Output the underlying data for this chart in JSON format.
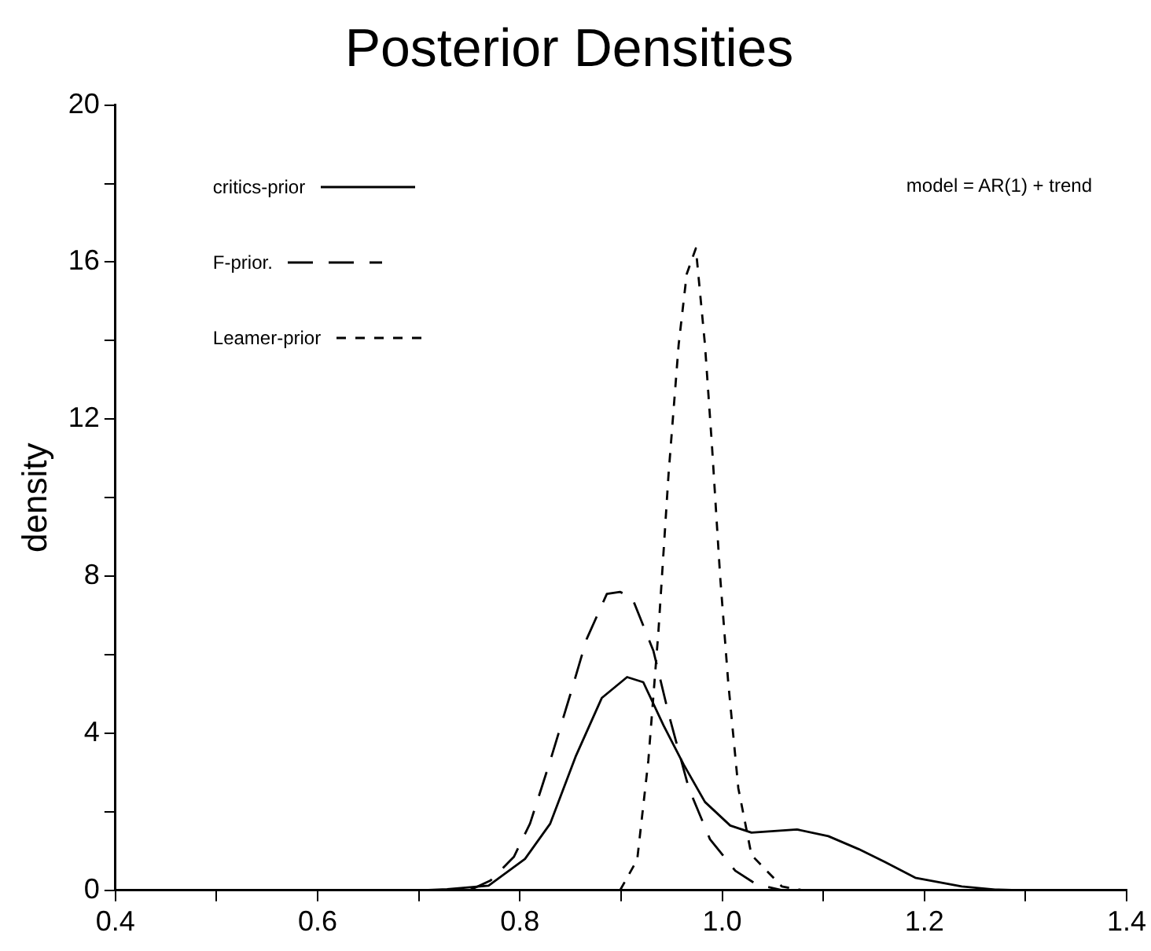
{
  "chart_data": {
    "type": "line",
    "title": "Posterior Densities",
    "ylabel": "density",
    "xlim": [
      0.4,
      1.4
    ],
    "ylim": [
      0,
      20
    ],
    "xticks": [
      0.4,
      {
        "value": 0.5,
        "label": null
      },
      0.6,
      {
        "value": 0.7,
        "label": null
      },
      0.8,
      {
        "value": 0.9,
        "label": null
      },
      {
        "value": 1,
        "label": "1.0"
      },
      {
        "value": 1.1,
        "label": null
      },
      1.2,
      {
        "value": 1.3,
        "label": null
      },
      1.4
    ],
    "yticks": [
      0,
      {
        "value": 2,
        "label": null
      },
      4,
      {
        "value": 6,
        "label": null
      },
      8,
      {
        "value": 10,
        "label": null
      },
      12,
      {
        "value": 14,
        "label": null
      },
      16,
      {
        "value": 18,
        "label": null
      },
      20
    ],
    "grid": false,
    "legend": "top left",
    "marker": "none",
    "annotations": [
      "model = AR(1) + trend"
    ],
    "series": [
      {
        "name": "critics-prior",
        "color": "#000000",
        "line_style": "solid",
        "x": [
          0.7,
          0.728,
          0.769,
          0.805,
          0.83,
          0.855,
          0.881,
          0.906,
          0.922,
          0.942,
          0.962,
          0.983,
          1.008,
          1.029,
          1.074,
          1.105,
          1.135,
          1.161,
          1.191,
          1.237,
          1.27,
          1.3
        ],
        "values": [
          0,
          0.03,
          0.12,
          0.8,
          1.7,
          3.4,
          4.9,
          5.43,
          5.3,
          4.2,
          3.2,
          2.25,
          1.65,
          1.47,
          1.55,
          1.38,
          1.05,
          0.72,
          0.32,
          0.1,
          0.02,
          0
        ]
      },
      {
        "name": "F-prior.",
        "color": "#000000",
        "line_style": "dashed",
        "x": [
          0.75,
          0.771,
          0.794,
          0.81,
          0.83,
          0.85,
          0.866,
          0.886,
          0.899,
          0.911,
          0.932,
          0.947,
          0.967,
          0.988,
          1.013,
          1.034,
          1.06
        ],
        "values": [
          0,
          0.25,
          0.85,
          1.7,
          3.3,
          5.0,
          6.4,
          7.55,
          7.6,
          7.45,
          6.1,
          4.5,
          2.6,
          1.3,
          0.5,
          0.15,
          0
        ]
      },
      {
        "name": "Leamer-prior",
        "color": "#000000",
        "line_style": "dotted",
        "x": [
          0.899,
          0.916,
          0.927,
          0.937,
          0.947,
          0.957,
          0.965,
          0.974,
          0.983,
          0.99,
          0.998,
          1.006,
          1.016,
          1.029,
          1.059,
          1.08
        ],
        "values": [
          0,
          0.78,
          3.3,
          6.6,
          10.6,
          13.9,
          15.7,
          16.35,
          13.9,
          11.3,
          8.0,
          5.3,
          2.6,
          0.9,
          0.1,
          0
        ]
      }
    ]
  }
}
